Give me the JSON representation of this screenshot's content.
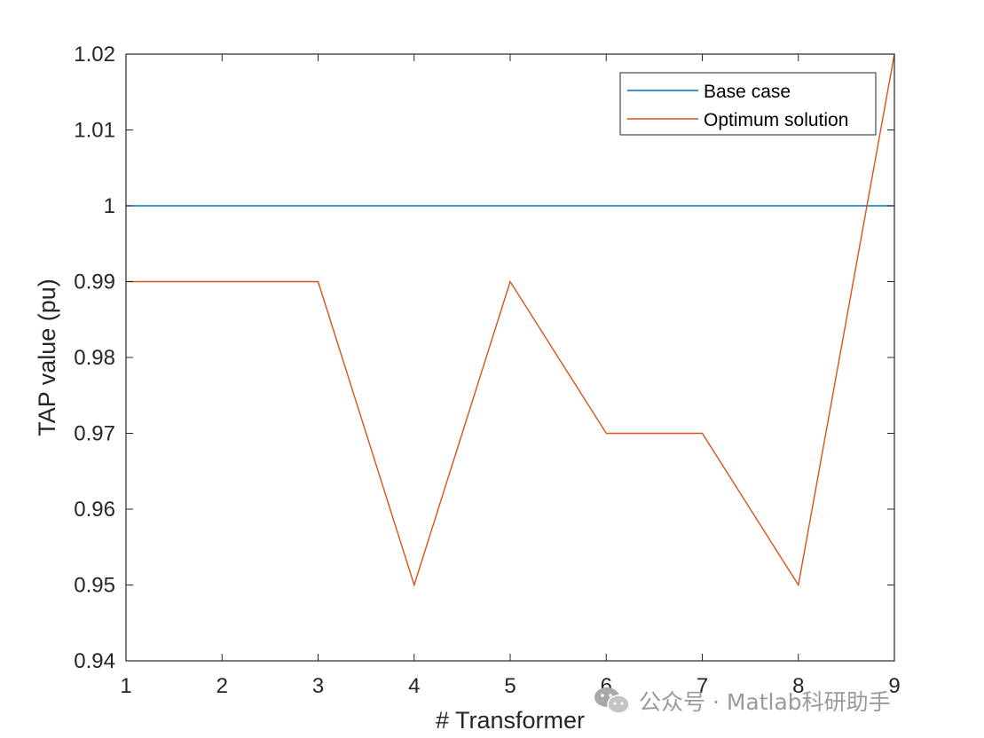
{
  "chart_data": {
    "type": "line",
    "xlabel": "# Transformer",
    "ylabel": "TAP value (pu)",
    "xlim": [
      1,
      9
    ],
    "ylim": [
      0.94,
      1.02
    ],
    "xticks": [
      1,
      2,
      3,
      4,
      5,
      6,
      7,
      8,
      9
    ],
    "yticks": [
      0.94,
      0.95,
      0.96,
      0.97,
      0.98,
      0.99,
      1,
      1.01,
      1.02
    ],
    "ytick_labels": [
      "0.94",
      "0.95",
      "0.96",
      "0.97",
      "0.98",
      "0.99",
      "1",
      "1.01",
      "1.02"
    ],
    "x": [
      1,
      2,
      3,
      4,
      5,
      6,
      7,
      8,
      9
    ],
    "series": [
      {
        "name": "Base case",
        "color": "#0072BD",
        "values": [
          1,
          1,
          1,
          1,
          1,
          1,
          1,
          1,
          1
        ]
      },
      {
        "name": "Optimum solution",
        "color": "#D95319",
        "values": [
          0.99,
          0.99,
          0.99,
          0.95,
          0.99,
          0.97,
          0.97,
          0.95,
          1.02
        ]
      }
    ],
    "legend": "top-right",
    "grid": false
  },
  "watermark": {
    "icon": "wechat-icon",
    "text": "公众号 · Matlab科研助手"
  }
}
